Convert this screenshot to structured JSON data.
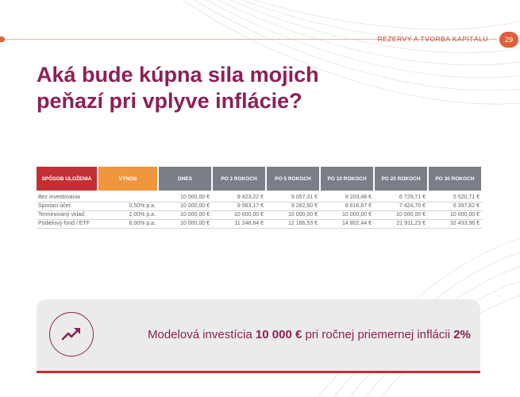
{
  "header": {
    "section_title": "REZERVY A TVORBA KAPITÁLU",
    "page_number": "29"
  },
  "title": {
    "line1": "Aká bude kúpna sila mojich",
    "line2": "peňazí pri vplyve inflácie?"
  },
  "table": {
    "columns": [
      "SPÔSOB ULOŽENIA",
      "VÝNOS",
      "DNES",
      "PO 3 ROKOCH",
      "PO 5 ROKOCH",
      "PO 10 ROKOCH",
      "PO 20 ROKOCH",
      "PO 30 ROKOCH"
    ],
    "rows": [
      [
        "Bez investovania",
        "",
        "10 000,00 €",
        "9 423,22 €",
        "9 057,31 €",
        "8 203,48 €",
        "6 729,71 €",
        "5 520,71 €"
      ],
      [
        "Sporiaci účet",
        "0,50% p.a.",
        "10 000,00 €",
        "9 563,17 €",
        "9 282,60 €",
        "8 616,67 €",
        "7 424,70 €",
        "6 397,62 €"
      ],
      [
        "Terminovaný vklad",
        "2,00% p.a.",
        "10 000,00 €",
        "10 000,00 €",
        "10 000,00 €",
        "10 000,00 €",
        "10 000,00 €",
        "10 000,00 €"
      ],
      [
        "Podielový fond / ETF",
        "6,00% p.a.",
        "10 000,00 €",
        "11 248,64 €",
        "12 166,53 €",
        "14 802,44 €",
        "21 911,23 €",
        "32 433,98 €"
      ]
    ]
  },
  "info": {
    "icon": "trending-up-icon",
    "text_part1": "Modelová investícia ",
    "text_bold1": "10 000 €",
    "text_part2": " pri ročnej priemernej inflácii ",
    "text_bold2": "2%"
  },
  "colors": {
    "accent_purple": "#8e1f55",
    "accent_red": "#c62e35",
    "accent_orange": "#f0973d",
    "header_gray": "#7b7e86",
    "header_orange": "#e0603a"
  }
}
